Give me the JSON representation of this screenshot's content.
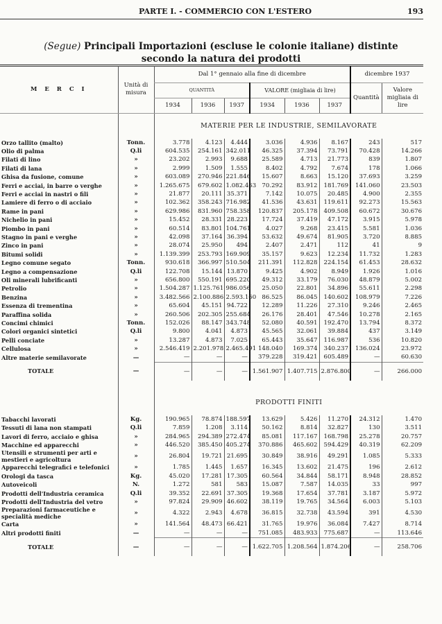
{
  "page_header": {
    "title": "PARTE I. - COMMERCIO CON L'ESTERO",
    "page_number": "193"
  },
  "title": {
    "prefix": "(Segue)",
    "line1": "Principali Importazioni (escluse le colonie italiane) distinte",
    "line2": "secondo la natura dei prodotti"
  },
  "columns": {
    "merci": "M E R C I",
    "unita": "Unità di misura",
    "period": "Dal 1° gennaio alla fine di dicembre",
    "quantita": "QUANTITÀ",
    "valore": "VALORE (migliaia di lire)",
    "years": [
      "1934",
      "1936",
      "1937"
    ],
    "dicembre": "dicembre 1937",
    "dic_quantita": "Quantità",
    "dic_valore": "Valore migliaia di lire"
  },
  "sections": [
    {
      "title": "MATERIE PER LE INDUSTRIE, SEMILAVORATE",
      "rows": [
        [
          "Orzo tallito (malto)",
          "Tonn.",
          "3.778",
          "4.123",
          "4.444",
          "3.036",
          "4.936",
          "8.167",
          "243",
          "517"
        ],
        [
          "Olio di palma",
          "Q.li",
          "604.535",
          "254.161",
          "342.011",
          "46.325",
          "37.394",
          "73.791",
          "70.428",
          "14.266"
        ],
        [
          "Filati di lino",
          "»",
          "23.202",
          "2.993",
          "9.688",
          "25.589",
          "4.713",
          "21.773",
          "839",
          "1.807"
        ],
        [
          "Filati di lana",
          "»",
          "2.999",
          "1.509",
          "1.555",
          "8.402",
          "4.792",
          "7.674",
          "178",
          "1.066"
        ],
        [
          "Ghisa da fusione, comune",
          "»",
          "603.089",
          "270.946",
          "221.846",
          "15.607",
          "8.663",
          "15.120",
          "37.693",
          "3.259"
        ],
        [
          "Ferri e acciai, in barre o verghe",
          "»",
          "1.265.675",
          "679.602",
          "1.082.463",
          "70.292",
          "83.912",
          "181.769",
          "141.060",
          "23.503"
        ],
        [
          "Ferri e acciai in nastri o fili",
          "»",
          "21.877",
          "20.111",
          "35.371",
          "7.142",
          "10.075",
          "20.485",
          "4.900",
          "2.355"
        ],
        [
          "Lamiere di ferro o di acciaio",
          "»",
          "102.362",
          "358.243",
          "716.982",
          "41.536",
          "43.631",
          "119.611",
          "92.273",
          "15.563"
        ],
        [
          "Rame in pani",
          "»",
          "629.986",
          "831.960",
          "758.358",
          "120.837",
          "205.178",
          "409.508",
          "60.672",
          "30.676"
        ],
        [
          "Nichelio in pani",
          "»",
          "15.452",
          "28.331",
          "28.223",
          "17.724",
          "37.419",
          "47.172",
          "3.915",
          "5.978"
        ],
        [
          "Piombo in pani",
          "»",
          "60.514",
          "83.801",
          "104.761",
          "4.027",
          "9.268",
          "23.415",
          "5.581",
          "1.036"
        ],
        [
          "Stagno in pani e verghe",
          "»",
          "42.098",
          "37.164",
          "36.394",
          "53.632",
          "49.674",
          "81.905",
          "3.720",
          "8.885"
        ],
        [
          "Zinco in pani",
          "»",
          "28.074",
          "25.950",
          "494",
          "2.407",
          "2.471",
          "112",
          "41",
          "9"
        ],
        [
          "Bitumi solidi",
          "»",
          "1.139.399",
          "253.793",
          "169.909",
          "35.157",
          "9.623",
          "12.234",
          "11.732",
          "1.283"
        ],
        [
          "Legno comune segato",
          "Tonn.",
          "930.618",
          "366.997",
          "510.504",
          "211.391",
          "112.828",
          "224.154",
          "61.453",
          "28.632"
        ],
        [
          "Legno a compensazione",
          "Q.li",
          "122.708",
          "15.144",
          "13.870",
          "9.425",
          "4.902",
          "8.949",
          "1.926",
          "1.016"
        ],
        [
          "Oli minerali lubrificanti",
          "»",
          "656.800",
          "550.191",
          "695.220",
          "49.312",
          "33.179",
          "76.030",
          "48.879",
          "5.002"
        ],
        [
          "Petrolio",
          "»",
          "1.504.287",
          "1.125.761",
          "986.056",
          "25.050",
          "22.801",
          "34.896",
          "55.611",
          "2.298"
        ],
        [
          "Benzina",
          "»",
          "3.482.566",
          "2.100.886",
          "2.593.160",
          "86.525",
          "86.045",
          "140.602",
          "108.979",
          "7.226"
        ],
        [
          "Essenza di trementina",
          "»",
          "65.604",
          "45.151",
          "94.722",
          "12.289",
          "11.226",
          "27.310",
          "9.246",
          "2.465"
        ],
        [
          "Paraffina solida",
          "»",
          "260.506",
          "202.305",
          "255.684",
          "26.176",
          "28.401",
          "47.546",
          "10.278",
          "2.165"
        ],
        [
          "Concimi chimici",
          "Tonn.",
          "152.026",
          "88.147",
          "343.748",
          "52.080",
          "40.591",
          "192.470",
          "13.794",
          "8.372"
        ],
        [
          "Colori organici sintetici",
          "Q.li",
          "9.800",
          "4.041",
          "4.873",
          "45.565",
          "32.061",
          "39.884",
          "437",
          "3.149"
        ],
        [
          "Pelli conciate",
          "»",
          "13.287",
          "4.873",
          "7.025",
          "65.443",
          "35.647",
          "116.987",
          "536",
          "10.820"
        ],
        [
          "Cellulosa",
          "»",
          "2.546.419",
          "2.201.978",
          "2.465.491",
          "148.040",
          "169.374",
          "340.237",
          "136.024",
          "23.972"
        ],
        [
          "Altre materie semilavorate",
          "—",
          "—",
          "—",
          "—",
          "379.228",
          "319.421",
          "605.489",
          "—",
          "60.630"
        ]
      ],
      "total": [
        "TOTALE",
        "—",
        "—",
        "—",
        "—",
        "1.561.907",
        "1.407.715",
        "2.876.800",
        "—",
        "266.000"
      ]
    },
    {
      "title": "PRODOTTI FINITI",
      "rows": [
        [
          "Tabacchi lavorati",
          "Kg.",
          "190.965",
          "78.874",
          "188.597",
          "13.629",
          "5.426",
          "11.270",
          "24.312",
          "1.470"
        ],
        [
          "Tessuti di lana non stampati",
          "Q.li",
          "7.859",
          "1.208",
          "3.114",
          "50.162",
          "8.814",
          "32.827",
          "130",
          "3.511"
        ],
        [
          "Lavori di ferro, acciaio e ghisa",
          "»",
          "284.965",
          "294.389",
          "272.474",
          "85.081",
          "117.167",
          "168.798",
          "25.278",
          "20.757"
        ],
        [
          "Macchine ed apparecchi",
          "»",
          "446.520",
          "385.450",
          "405.274",
          "370.886",
          "465.602",
          "594.429",
          "40.319",
          "62.209"
        ],
        [
          "Utensili e strumenti per arti e mestieri e agricoltura",
          "»",
          "26.804",
          "19.721",
          "21.695",
          "30.849",
          "38.916",
          "49.291",
          "1.085",
          "5.333"
        ],
        [
          "Apparecchi telegrafici e telefonici",
          "»",
          "1.785",
          "1.445",
          "1.657",
          "16.345",
          "13.602",
          "21.475",
          "196",
          "2.612"
        ],
        [
          "Orologi da tasca",
          "Kg.",
          "45.020",
          "17.281",
          "17.305",
          "60.564",
          "34.844",
          "58.171",
          "8.948",
          "28.852"
        ],
        [
          "Autoveicoli",
          "N.",
          "1.272",
          "581",
          "583",
          "15.087",
          "7.587",
          "14.035",
          "33",
          "997"
        ],
        [
          "Prodotti dell'Industria ceramica",
          "Q.li",
          "39.352",
          "22.691",
          "37.305",
          "19.368",
          "17.654",
          "37.781",
          "3.187",
          "5.972"
        ],
        [
          "Prodotti dell'Industria del vetro",
          "»",
          "97.824",
          "29.909",
          "46.602",
          "38.119",
          "19.765",
          "34.564",
          "6.003",
          "5.103"
        ],
        [
          "Preparazioni farmaceutiche e specialità mediche",
          "»",
          "4.322",
          "2.943",
          "4.678",
          "36.815",
          "32.738",
          "43.594",
          "391",
          "4.530"
        ],
        [
          "Carta",
          "»",
          "141.564",
          "48.473",
          "66.421",
          "31.765",
          "19.976",
          "36.084",
          "7.427",
          "8.714"
        ],
        [
          "Altri prodotti finiti",
          "—",
          "—",
          "—",
          "—",
          "751.085",
          "483.933",
          "775.687",
          "—",
          "113.646"
        ]
      ],
      "total": [
        "TOTALE",
        "—",
        "—",
        "—",
        "—",
        "1.622.705",
        "1.208.564",
        "1.874.206",
        "—",
        "258.706"
      ]
    }
  ]
}
